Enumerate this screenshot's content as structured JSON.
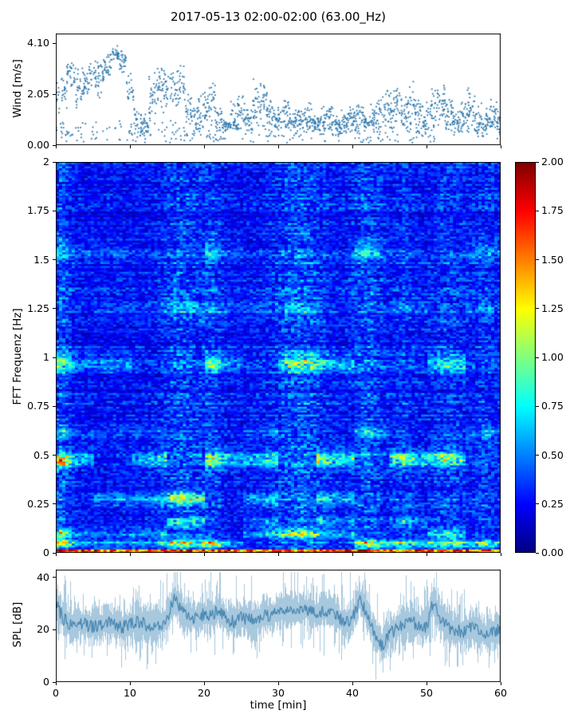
{
  "figure": {
    "title": "2017-05-13 02:00-02:00 (63.00_Hz)",
    "background_color": "#ffffff"
  },
  "chart_data": [
    {
      "id": "wind",
      "type": "scatter",
      "ylabel": "Wind [m/s]",
      "ylim": [
        0,
        4.5
      ],
      "x_range": [
        0,
        60
      ],
      "yticks": [
        {
          "v": 0,
          "label": "0.00"
        },
        {
          "v": 2.05,
          "label": "2.05"
        },
        {
          "v": 4.1,
          "label": "4.10"
        }
      ],
      "point_color": "#2b77ad",
      "points_per_minute": 32,
      "minute_mean": [
        1.8,
        2.2,
        2.8,
        2.5,
        2.6,
        2.8,
        2.7,
        3.2,
        3.6,
        3.4,
        2.2,
        1.0,
        0.8,
        1.8,
        2.4,
        2.2,
        2.0,
        2.4,
        1.5,
        1.2,
        1.4,
        1.7,
        1.0,
        0.8,
        1.1,
        1.4,
        1.0,
        1.6,
        1.8,
        1.2,
        1.0,
        1.3,
        0.9,
        1.0,
        1.2,
        0.9,
        1.0,
        1.1,
        0.8,
        0.9,
        1.0,
        1.2,
        0.9,
        1.1,
        1.3,
        1.5,
        1.7,
        1.4,
        1.6,
        1.3,
        1.1,
        1.5,
        1.7,
        1.4,
        1.0,
        1.2,
        1.5,
        1.0,
        0.9,
        1.2,
        1.0
      ],
      "minute_spread": [
        1.2,
        1.2,
        0.8,
        1.2,
        0.9,
        0.8,
        1.0,
        0.8,
        0.5,
        0.7,
        1.0,
        0.8,
        0.6,
        1.4,
        1.2,
        1.3,
        1.4,
        1.2,
        1.3,
        1.0,
        1.1,
        1.2,
        0.8,
        0.5,
        0.9,
        1.0,
        0.8,
        1.2,
        1.2,
        0.9,
        0.8,
        1.0,
        0.6,
        0.7,
        0.9,
        0.6,
        0.8,
        0.8,
        0.5,
        0.6,
        0.7,
        0.9,
        0.6,
        0.8,
        1.0,
        1.1,
        1.2,
        1.0,
        1.1,
        1.0,
        0.8,
        1.1,
        1.2,
        1.0,
        0.7,
        0.9,
        1.1,
        0.8,
        0.7,
        0.9,
        0.8
      ],
      "low_cluster_frac": [
        0.35,
        0.3,
        0.15,
        0.25,
        0.1,
        0.1,
        0.15,
        0.05,
        0.08,
        0.1,
        0.25,
        0.35,
        0.4,
        0.2,
        0.15,
        0.15,
        0.2,
        0.15,
        0.2,
        0.25,
        0.2,
        0.15,
        0.2,
        0.25,
        0.2,
        0.15,
        0.2,
        0.15,
        0.15,
        0.2,
        0.2,
        0.15,
        0.2,
        0.2,
        0.15,
        0.2,
        0.2,
        0.15,
        0.2,
        0.2,
        0.15,
        0.15,
        0.2,
        0.15,
        0.15,
        0.15,
        0.15,
        0.15,
        0.15,
        0.15,
        0.2,
        0.15,
        0.15,
        0.15,
        0.2,
        0.15,
        0.15,
        0.2,
        0.2,
        0.15,
        0.2
      ]
    },
    {
      "id": "spectrogram",
      "type": "heatmap",
      "ylabel": "FFT Frequenz [Hz]",
      "ylim": [
        0,
        2
      ],
      "x_range": [
        0,
        60
      ],
      "yticks": [
        {
          "v": 0,
          "label": "0"
        },
        {
          "v": 0.25,
          "label": "0.25"
        },
        {
          "v": 0.5,
          "label": "0.5"
        },
        {
          "v": 0.75,
          "label": "0.75"
        },
        {
          "v": 1,
          "label": "1"
        },
        {
          "v": 1.25,
          "label": "1.25"
        },
        {
          "v": 1.5,
          "label": "1.5"
        },
        {
          "v": 1.75,
          "label": "1.75"
        },
        {
          "v": 2,
          "label": "2"
        }
      ],
      "colormap": "jet",
      "grid_bins": {
        "time": 140,
        "freq": 200
      },
      "background_level": {
        "base": 0.1,
        "noise": 0.32
      },
      "bands": [
        {
          "freq": 0.05,
          "width": 0.02,
          "gain": 0.9,
          "duty": 0.4
        },
        {
          "freq": 0.1,
          "width": 0.025,
          "gain": 0.7,
          "duty": 0.5
        },
        {
          "freq": 0.16,
          "width": 0.025,
          "gain": 0.5,
          "duty": 0.55
        },
        {
          "freq": 0.28,
          "width": 0.03,
          "gain": 0.75,
          "duty": 0.5
        },
        {
          "freq": 0.48,
          "width": 0.035,
          "gain": 1.0,
          "duty": 0.35
        },
        {
          "freq": 0.62,
          "width": 0.03,
          "gain": 0.35,
          "duty": 0.5
        },
        {
          "freq": 0.97,
          "width": 0.05,
          "gain": 0.55,
          "duty": 0.45
        },
        {
          "freq": 1.25,
          "width": 0.04,
          "gain": 0.25,
          "duty": 0.55
        },
        {
          "freq": 1.55,
          "width": 0.05,
          "gain": 0.3,
          "duty": 0.55
        }
      ],
      "events": [
        {
          "t": 0.8,
          "width": 1.2,
          "gain": 0.9
        },
        {
          "t": 17,
          "width": 2.5,
          "gain": 0.8
        },
        {
          "t": 21,
          "width": 1.5,
          "gain": 0.6
        },
        {
          "t": 33,
          "width": 3.5,
          "gain": 0.9
        },
        {
          "t": 42,
          "width": 2,
          "gain": 0.9
        },
        {
          "t": 47,
          "width": 1.5,
          "gain": 0.5
        },
        {
          "t": 53,
          "width": 2.5,
          "gain": 0.55
        },
        {
          "t": 58,
          "width": 1.5,
          "gain": 0.5
        }
      ],
      "colorbar": {
        "min": 0,
        "max": 2,
        "ticks": [
          {
            "v": 0,
            "label": "0.00"
          },
          {
            "v": 0.25,
            "label": "0.25"
          },
          {
            "v": 0.5,
            "label": "0.50"
          },
          {
            "v": 0.75,
            "label": "0.75"
          },
          {
            "v": 1,
            "label": "1.00"
          },
          {
            "v": 1.25,
            "label": "1.25"
          },
          {
            "v": 1.5,
            "label": "1.50"
          },
          {
            "v": 1.75,
            "label": "1.75"
          },
          {
            "v": 2,
            "label": "2.00"
          }
        ]
      }
    },
    {
      "id": "spl",
      "type": "line",
      "ylabel": "SPL [dB]",
      "xlabel": "time [min]",
      "ylim": [
        0,
        43
      ],
      "x_range": [
        0,
        60
      ],
      "yticks": [
        {
          "v": 0,
          "label": "0"
        },
        {
          "v": 20,
          "label": "20"
        },
        {
          "v": 40,
          "label": "40"
        }
      ],
      "xticks": [
        {
          "v": 0,
          "label": "0"
        },
        {
          "v": 10,
          "label": "10"
        },
        {
          "v": 20,
          "label": "20"
        },
        {
          "v": 30,
          "label": "30"
        },
        {
          "v": 40,
          "label": "40"
        },
        {
          "v": 50,
          "label": "50"
        },
        {
          "v": 60,
          "label": "60"
        }
      ],
      "line_color": "#2e76a8",
      "envelope_color": "#a8c8dd",
      "minute_mean": [
        30,
        24,
        22,
        23,
        22,
        21,
        22,
        23,
        22,
        21,
        22,
        23,
        22,
        21,
        22,
        24,
        33,
        27,
        25,
        24,
        26,
        25,
        28,
        24,
        23,
        25,
        24,
        23,
        26,
        25,
        28,
        27,
        28,
        27,
        28,
        26,
        27,
        28,
        25,
        23,
        24,
        32,
        26,
        18,
        14,
        18,
        21,
        22,
        23,
        22,
        21,
        31,
        24,
        21,
        20,
        19,
        21,
        20,
        18,
        19,
        20
      ]
    }
  ]
}
